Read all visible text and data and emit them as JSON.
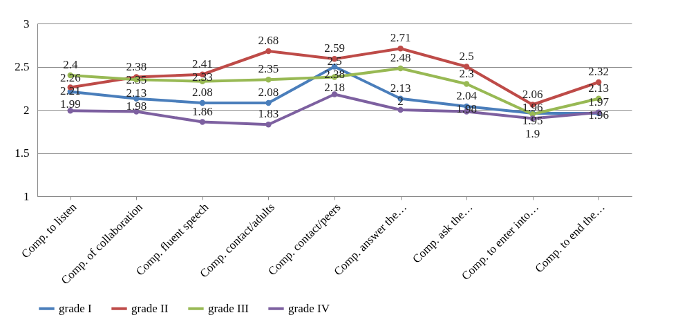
{
  "chart_data": {
    "type": "line",
    "categories": [
      "Comp. to listen",
      "Comp. of collaboration",
      "Comp. fluent speech",
      "Comp. contact/adults",
      "Comp. contact/peers",
      "Comp. answer the…",
      "Comp. ask the…",
      "Comp. to enter into…",
      "Comp. to end the…"
    ],
    "series": [
      {
        "name": "grade I",
        "color": "#4a7ebb",
        "values": [
          2.21,
          2.13,
          2.08,
          2.08,
          2.5,
          2.13,
          2.04,
          1.96,
          1.96
        ]
      },
      {
        "name": "grade II",
        "color": "#be4b48",
        "values": [
          2.26,
          2.38,
          2.41,
          2.68,
          2.59,
          2.71,
          2.5,
          2.06,
          2.32
        ]
      },
      {
        "name": "grade III",
        "color": "#98b954",
        "values": [
          2.4,
          2.35,
          2.33,
          2.35,
          2.38,
          2.48,
          2.3,
          1.95,
          2.13
        ]
      },
      {
        "name": "grade IV",
        "color": "#7d60a0",
        "values": [
          1.99,
          1.98,
          1.86,
          1.83,
          2.18,
          2,
          1.98,
          1.9,
          1.97
        ]
      }
    ],
    "ylim": [
      1,
      3
    ],
    "yticks": [
      1,
      1.5,
      2,
      2.5,
      3
    ],
    "grid": "y",
    "legend": "bottom",
    "marker": "circle",
    "line_style": "solid",
    "data_labels": true
  }
}
